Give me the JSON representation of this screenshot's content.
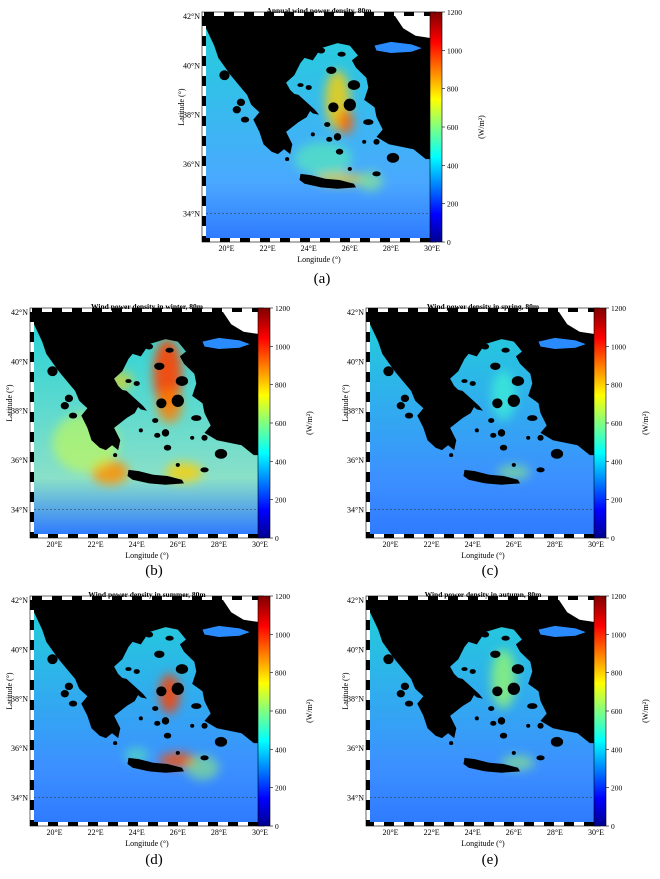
{
  "figure": {
    "colorbar": {
      "ticks": [
        "0",
        "200",
        "400",
        "600",
        "800",
        "1000",
        "1200"
      ],
      "unit_label": "(W/m²)",
      "min": 0,
      "max": 1200
    },
    "x_axis": {
      "label": "Longitude (°)",
      "ticks": [
        "20°E",
        "22°E",
        "24°E",
        "26°E",
        "28°E",
        "30°E"
      ],
      "range": [
        19,
        30
      ]
    },
    "y_axis": {
      "label": "Latitude (°)",
      "ticks": [
        "34°N",
        "36°N",
        "38°N",
        "40°N",
        "42°N"
      ],
      "range": [
        33,
        42
      ]
    },
    "panels": [
      {
        "id": "a",
        "title": "Annual wind power density, 80m",
        "caption": "(a)"
      },
      {
        "id": "b",
        "title": "Wind power density in winter, 80m",
        "caption": "(b)"
      },
      {
        "id": "c",
        "title": "Wind power density in spring, 80m",
        "caption": "(c)"
      },
      {
        "id": "d",
        "title": "Wind power density in summer, 80m",
        "caption": "(d)"
      },
      {
        "id": "e",
        "title": "Wind power density in autumn, 80m",
        "caption": "(e)"
      }
    ],
    "colors": {
      "land": "#000000",
      "low": "#00008f",
      "mid": "#21d1d8",
      "high": "#800000"
    }
  }
}
